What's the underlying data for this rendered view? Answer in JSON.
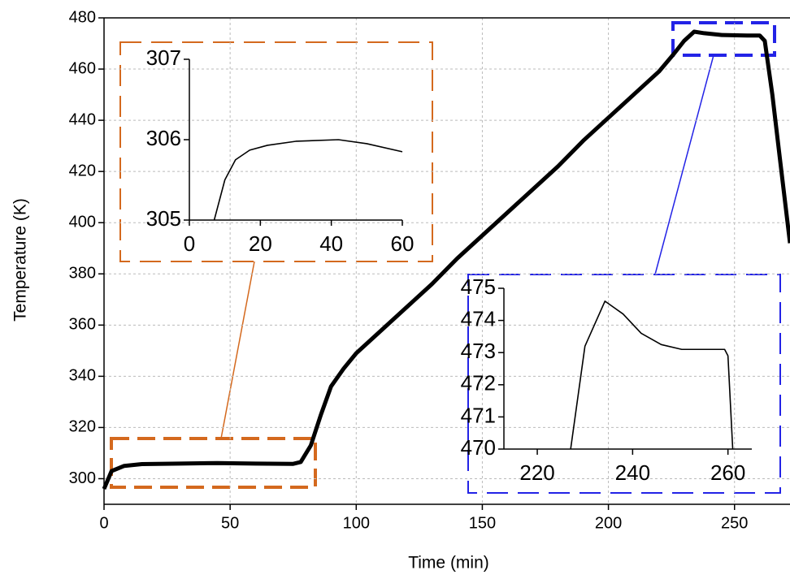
{
  "chart_data": [
    {
      "type": "line",
      "xlabel": "Time (min)",
      "ylabel": "Temperature (K)",
      "grid": true,
      "xlim": [
        0,
        272
      ],
      "ylim": [
        290,
        480
      ],
      "xticks": [
        0,
        50,
        100,
        150,
        200,
        250
      ],
      "yticks": [
        300,
        320,
        340,
        360,
        380,
        400,
        420,
        440,
        460,
        480
      ],
      "x": [
        0,
        3,
        8,
        15,
        30,
        45,
        60,
        75,
        78,
        82,
        86,
        90,
        95,
        100,
        110,
        120,
        130,
        140,
        150,
        160,
        170,
        180,
        190,
        200,
        210,
        220,
        226,
        230,
        234,
        238,
        245,
        255,
        260,
        262,
        265,
        268,
        272
      ],
      "series": [
        {
          "color": "#000000",
          "values": [
            296,
            303,
            305,
            305.7,
            305.9,
            306.1,
            305.9,
            305.8,
            306.5,
            313,
            325,
            336,
            343,
            349,
            358,
            367,
            376,
            386,
            395,
            404,
            413,
            422,
            432,
            441,
            450,
            459,
            466,
            471,
            474.6,
            474,
            473.3,
            473.1,
            473.1,
            471,
            450,
            425,
            392
          ]
        }
      ]
    },
    {
      "type": "line",
      "xlim": [
        0,
        60
      ],
      "ylim": [
        305,
        307
      ],
      "xticks": [
        0,
        20,
        40,
        60
      ],
      "yticks": [
        305,
        306,
        307
      ],
      "x": [
        7,
        10,
        13,
        17,
        22,
        30,
        42,
        50,
        60
      ],
      "series": [
        {
          "color": "#000000",
          "values": [
            305,
            305.5,
            305.75,
            305.87,
            305.93,
            305.98,
            306.0,
            305.95,
            305.85
          ]
        }
      ]
    },
    {
      "type": "line",
      "xlim": [
        213,
        265
      ],
      "ylim": [
        470,
        475
      ],
      "xticks": [
        220,
        240,
        260
      ],
      "yticks": [
        470,
        471,
        472,
        473,
        474,
        475
      ],
      "x": [
        227,
        230,
        234.2,
        238,
        241.8,
        246,
        250.3,
        255,
        259.3,
        260,
        261
      ],
      "series": [
        {
          "color": "#000000",
          "values": [
            470,
            473.2,
            474.6,
            474.2,
            473.6,
            473.25,
            473.1,
            473.1,
            473.1,
            472.9,
            470
          ]
        }
      ]
    }
  ]
}
